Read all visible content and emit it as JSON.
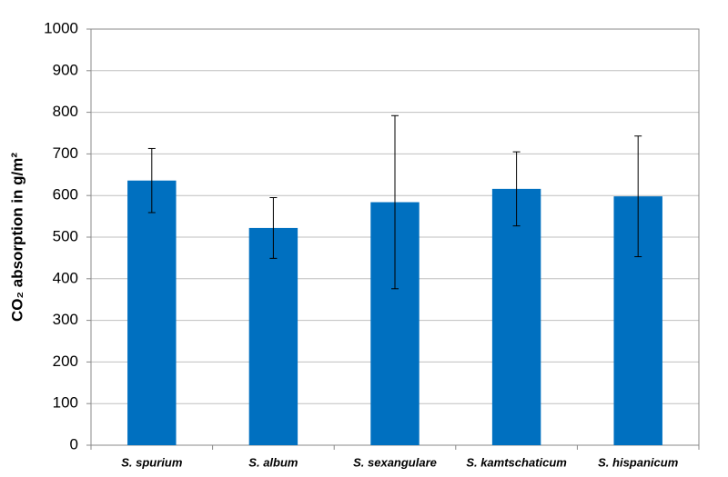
{
  "chart_data": {
    "type": "bar",
    "y_label": "CO₂ absorption in g/m²",
    "categories": [
      "S. spurium",
      "S. album",
      "S. sexangulare",
      "S. kamtschaticum",
      "S. hispanicum"
    ],
    "values": [
      636,
      522,
      584,
      616,
      598
    ],
    "errors": [
      77,
      73,
      208,
      89,
      145
    ],
    "color": "#0070c0",
    "ylim": [
      0,
      1000
    ],
    "yticks": [
      0,
      100,
      200,
      300,
      400,
      500,
      600,
      700,
      800,
      900,
      1000
    ],
    "grid": true
  }
}
